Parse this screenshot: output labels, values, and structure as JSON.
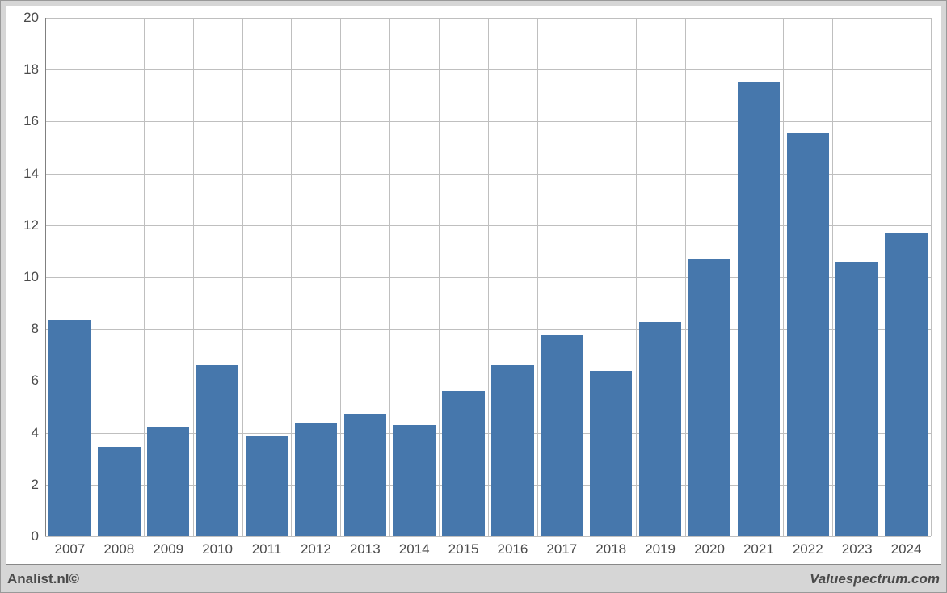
{
  "chart": {
    "type": "bar",
    "categories": [
      "2007",
      "2008",
      "2009",
      "2010",
      "2011",
      "2012",
      "2013",
      "2014",
      "2015",
      "2016",
      "2017",
      "2018",
      "2019",
      "2020",
      "2021",
      "2022",
      "2023",
      "2024"
    ],
    "values": [
      8.35,
      3.45,
      4.2,
      6.6,
      3.85,
      4.4,
      4.7,
      4.3,
      5.6,
      6.6,
      7.75,
      6.4,
      8.3,
      10.7,
      17.55,
      15.55,
      10.6,
      11.7
    ],
    "bar_color": "#4677ac",
    "background_color": "#ffffff",
    "outer_background_color": "#d6d6d6",
    "grid_color": "#bfbfbf",
    "axis_color": "#808080",
    "text_color": "#4a4a4a",
    "ylim": [
      0,
      20
    ],
    "ytick_step": 2,
    "bar_width_ratio": 0.86,
    "tick_fontsize": 17
  },
  "footer": {
    "left": "Analist.nl©",
    "right": "Valuespectrum.com"
  }
}
